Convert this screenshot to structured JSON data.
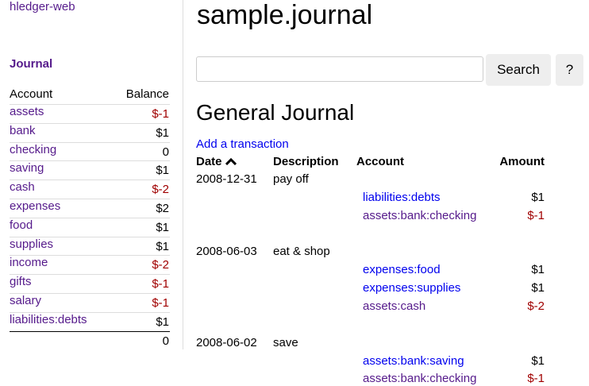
{
  "sidebar": {
    "app_link": "hledger-web",
    "journal_link": "Journal",
    "headers": {
      "account": "Account",
      "balance": "Balance"
    },
    "accounts": [
      {
        "name": "assets",
        "level": 0,
        "balance": "$-1",
        "negative": true
      },
      {
        "name": "bank",
        "level": 1,
        "balance": "$1",
        "negative": false
      },
      {
        "name": "checking",
        "level": 2,
        "balance": "0",
        "negative": false
      },
      {
        "name": "saving",
        "level": 2,
        "balance": "$1",
        "negative": false
      },
      {
        "name": "cash",
        "level": 1,
        "balance": "$-2",
        "negative": true
      },
      {
        "name": "expenses",
        "level": 0,
        "balance": "$2",
        "negative": false
      },
      {
        "name": "food",
        "level": 1,
        "balance": "$1",
        "negative": false
      },
      {
        "name": "supplies",
        "level": 1,
        "balance": "$1",
        "negative": false
      },
      {
        "name": "income",
        "level": 0,
        "balance": "$-2",
        "negative": true
      },
      {
        "name": "gifts",
        "level": 1,
        "balance": "$-1",
        "negative": true
      },
      {
        "name": "salary",
        "level": 1,
        "balance": "$-1",
        "negative": true
      },
      {
        "name": "liabilities:debts",
        "level": 0,
        "balance": "$1",
        "negative": false
      }
    ],
    "total": "0"
  },
  "main": {
    "title": "sample.journal",
    "search": {
      "value": "",
      "placeholder": "",
      "button": "Search",
      "help": "?"
    },
    "heading": "General Journal",
    "add_link": "Add a transaction",
    "columns": {
      "date": "Date",
      "description": "Description",
      "account": "Account",
      "amount": "Amount"
    },
    "sort_icon": "chevron-up-icon",
    "transactions": [
      {
        "date": "2008-12-31",
        "description": "pay off",
        "postings": [
          {
            "account": "liabilities:debts",
            "amount": "$1",
            "visited": false
          },
          {
            "account": "assets:bank:checking",
            "amount": "$-1",
            "visited": true
          }
        ]
      },
      {
        "date": "2008-06-03",
        "description": "eat & shop",
        "postings": [
          {
            "account": "expenses:food",
            "amount": "$1",
            "visited": false
          },
          {
            "account": "expenses:supplies",
            "amount": "$1",
            "visited": false
          },
          {
            "account": "assets:cash",
            "amount": "$-2",
            "visited": true
          }
        ]
      },
      {
        "date": "2008-06-02",
        "description": "save",
        "postings": [
          {
            "account": "assets:bank:saving",
            "amount": "$1",
            "visited": false
          },
          {
            "account": "assets:bank:checking",
            "amount": "$-1",
            "visited": true
          }
        ]
      }
    ]
  },
  "colors": {
    "visited_link": "#551a8b",
    "link": "#0000ee",
    "negative": "#a00000"
  }
}
